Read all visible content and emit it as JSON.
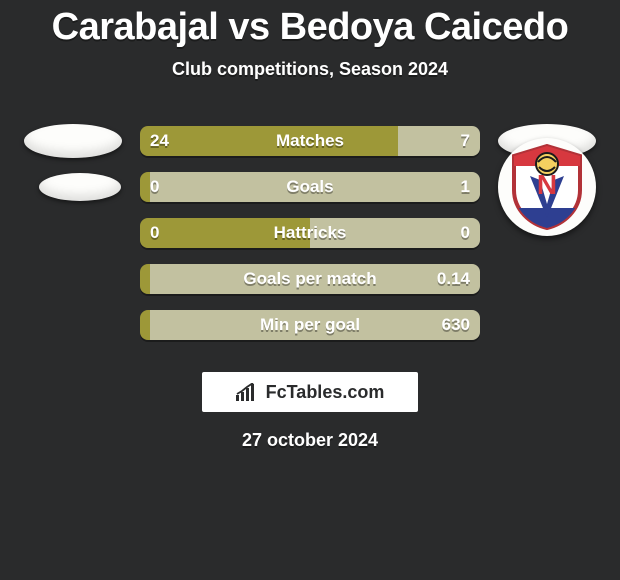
{
  "background_color": "#2a2b2c",
  "text_color": "#ffffff",
  "title": "Carabajal vs Bedoya Caicedo",
  "subtitle": "Club competitions, Season 2024",
  "date": "27 october 2024",
  "branding": {
    "text": "FcTables.com"
  },
  "olive": "#9d9838",
  "sage": "#c2c1a0",
  "player_left": {
    "avatar": "oval"
  },
  "player_right": {
    "avatar": "crest"
  },
  "rows": [
    {
      "label": "Matches",
      "left": "24",
      "right": "7",
      "split": 0.76
    },
    {
      "label": "Goals",
      "left": "0",
      "right": "1",
      "split": 0.03
    },
    {
      "label": "Hattricks",
      "left": "0",
      "right": "0",
      "split": 0.5
    },
    {
      "label": "Goals per match",
      "left": "",
      "right": "0.14",
      "split": 0.03
    },
    {
      "label": "Min per goal",
      "left": "",
      "right": "630",
      "split": 0.03
    }
  ]
}
